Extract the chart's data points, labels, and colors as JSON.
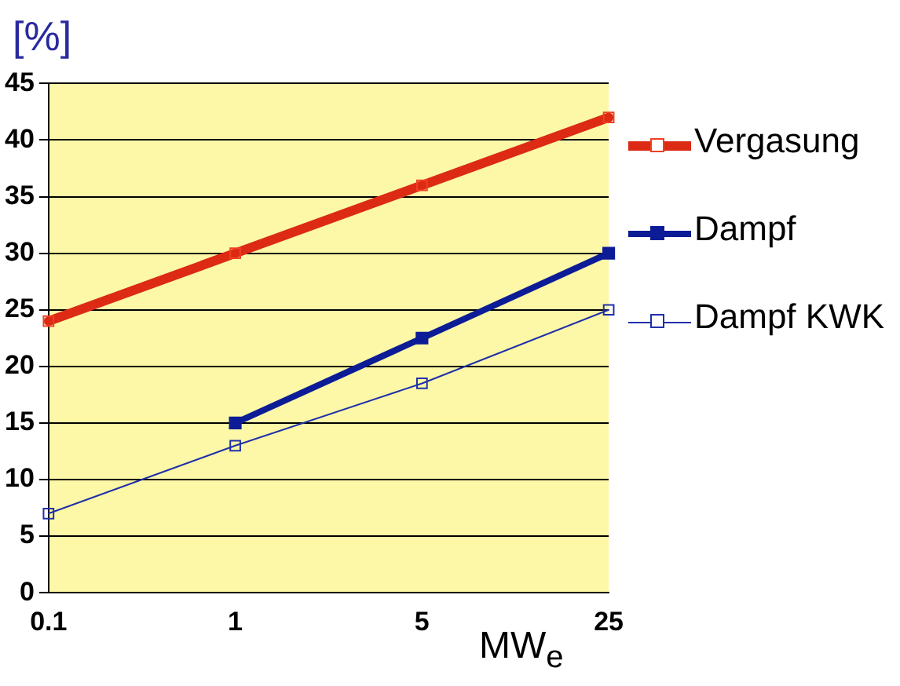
{
  "chart_data": {
    "type": "line",
    "ylabel": "[%]",
    "xlabel": "MW$_{e}$",
    "categories": [
      "0.1",
      "1",
      "5",
      "25"
    ],
    "ylim": [
      0,
      45
    ],
    "yticks": [
      0,
      5,
      10,
      15,
      20,
      25,
      30,
      35,
      40,
      45
    ],
    "grid": "y",
    "legend": "right",
    "marker": "square",
    "series": [
      {
        "name": "Vergasung",
        "color": "#dc2a14",
        "values": [
          24,
          30,
          36,
          42
        ]
      },
      {
        "name": "Dampf",
        "color": "#0c1c96",
        "values": [
          null,
          15,
          22.5,
          30
        ]
      },
      {
        "name": "Dampf KWK",
        "color": "#2030a8",
        "values": [
          7,
          13,
          18.5,
          25
        ]
      }
    ]
  }
}
